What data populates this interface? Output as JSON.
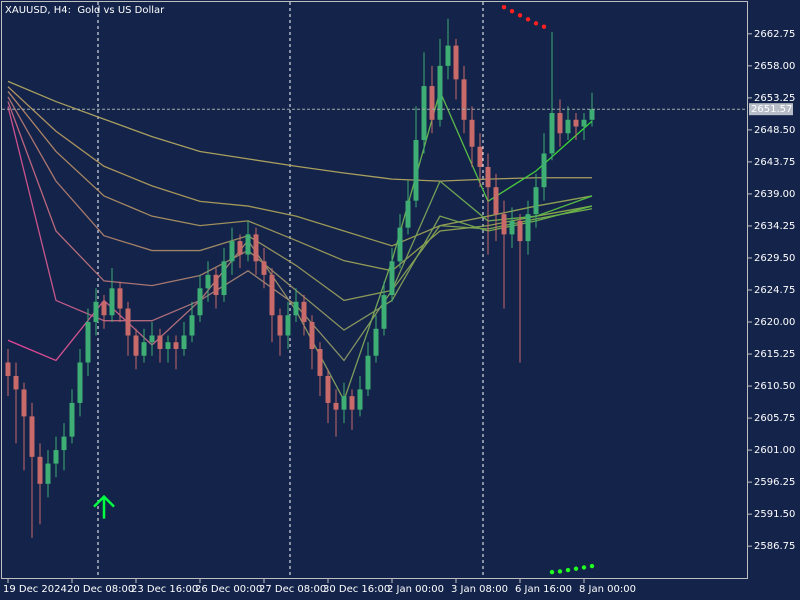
{
  "chart_data": {
    "type": "candlestick",
    "title": "XAUUSD, H4:  Gold vs US Dollar",
    "background": "#13234a",
    "up_color": "#3fae74",
    "down_color": "#c96a6a",
    "grid": false,
    "ylim": [
      2581.88,
      2667.47
    ],
    "yticks": [
      2662.75,
      {
        "value": 2658,
        "label": "2658.00"
      },
      2653.25,
      {
        "value": 2648.5,
        "label": "2648.50"
      },
      2643.75,
      {
        "value": 2639,
        "label": "2639.00"
      },
      2634.25,
      {
        "value": 2629.5,
        "label": "2629.50"
      },
      2624.75,
      {
        "value": 2620,
        "label": "2620.00"
      },
      2615.25,
      {
        "value": 2610.5,
        "label": "2610.50"
      },
      2605.75,
      {
        "value": 2601,
        "label": "2601.00"
      },
      2596.25,
      {
        "value": 2591.5,
        "label": "2591.50"
      },
      2586.75
    ],
    "current_price": 2651.57,
    "categories": [
      "19 Dec 2024",
      null,
      null,
      null,
      null,
      null,
      null,
      null,
      "20 Dec 08:00",
      null,
      null,
      null,
      null,
      null,
      null,
      null,
      "23 Dec 16:00",
      null,
      null,
      null,
      null,
      null,
      null,
      null,
      "26 Dec 00:00",
      null,
      null,
      null,
      null,
      null,
      null,
      null,
      "27 Dec 08:00",
      null,
      null,
      null,
      null,
      null,
      null,
      null,
      "30 Dec 16:00",
      null,
      null,
      null,
      null,
      null,
      null,
      null,
      "2 Jan 00:00",
      null,
      null,
      null,
      null,
      null,
      null,
      null,
      "3 Jan 08:00",
      null,
      null,
      null,
      null,
      null,
      null,
      null,
      "6 Jan 16:00",
      null,
      null,
      null,
      null,
      null,
      null,
      null,
      "8 Jan 00:00",
      null
    ],
    "ohlc": [
      [
        2614,
        2616,
        2609,
        2612
      ],
      [
        2612,
        2614,
        2602,
        2610
      ],
      [
        2610,
        2611,
        2598,
        2606
      ],
      [
        2606,
        2608,
        2588,
        2600
      ],
      [
        2600,
        2602,
        2590,
        2596
      ],
      [
        2596,
        2601,
        2594,
        2599
      ],
      [
        2599,
        2603,
        2597,
        2601
      ],
      [
        2601,
        2605,
        2598,
        2603
      ],
      [
        2603,
        2610,
        2602,
        2608
      ],
      [
        2608,
        2616,
        2606,
        2614
      ],
      [
        2614,
        2622,
        2612,
        2620
      ],
      [
        2620,
        2625,
        2618,
        2623
      ],
      [
        2623,
        2624,
        2619,
        2621
      ],
      [
        2621,
        2628,
        2620,
        2625
      ],
      [
        2625,
        2626,
        2620,
        2622
      ],
      [
        2622,
        2623,
        2615,
        2618
      ],
      [
        2618,
        2619,
        2613,
        2615
      ],
      [
        2615,
        2619,
        2614,
        2617
      ],
      [
        2617,
        2620,
        2615,
        2618
      ],
      [
        2618,
        2619,
        2614,
        2616
      ],
      [
        2616,
        2618,
        2614,
        2617
      ],
      [
        2617,
        2618,
        2613,
        2616
      ],
      [
        2616,
        2620,
        2615,
        2618
      ],
      [
        2618,
        2623,
        2617,
        2621
      ],
      [
        2621,
        2627,
        2620,
        2625
      ],
      [
        2625,
        2629,
        2623,
        2627
      ],
      [
        2627,
        2628,
        2622,
        2624
      ],
      [
        2624,
        2631,
        2623,
        2629
      ],
      [
        2629,
        2634,
        2627,
        2632
      ],
      [
        2632,
        2633,
        2628,
        2630
      ],
      [
        2630,
        2635,
        2629,
        2633
      ],
      [
        2633,
        2634,
        2627,
        2629
      ],
      [
        2629,
        2631,
        2625,
        2627
      ],
      [
        2627,
        2628,
        2617,
        2621
      ],
      [
        2621,
        2622,
        2615,
        2618
      ],
      [
        2618,
        2623,
        2616,
        2621
      ],
      [
        2621,
        2625,
        2620,
        2623
      ],
      [
        2623,
        2624,
        2618,
        2620
      ],
      [
        2620,
        2621,
        2613,
        2616
      ],
      [
        2616,
        2617,
        2609,
        2612
      ],
      [
        2612,
        2613,
        2605,
        2608
      ],
      [
        2608,
        2610,
        2603,
        2607
      ],
      [
        2607,
        2611,
        2605,
        2609
      ],
      [
        2609,
        2610,
        2604,
        2607
      ],
      [
        2607,
        2612,
        2606,
        2610
      ],
      [
        2610,
        2617,
        2609,
        2615
      ],
      [
        2615,
        2621,
        2614,
        2619
      ],
      [
        2619,
        2626,
        2618,
        2624
      ],
      [
        2624,
        2631,
        2623,
        2629
      ],
      [
        2629,
        2636,
        2628,
        2634
      ],
      [
        2634,
        2641,
        2633,
        2638
      ],
      [
        2638,
        2652,
        2637,
        2647
      ],
      [
        2647,
        2660,
        2645,
        2655
      ],
      [
        2655,
        2658,
        2648,
        2650
      ],
      [
        2650,
        2662,
        2649,
        2658
      ],
      [
        2658,
        2665,
        2656,
        2661
      ],
      [
        2661,
        2662,
        2653,
        2656
      ],
      [
        2656,
        2658,
        2648,
        2650
      ],
      [
        2650,
        2652,
        2643,
        2646
      ],
      [
        2646,
        2648,
        2640,
        2643
      ],
      [
        2643,
        2645,
        2630,
        2640
      ],
      [
        2640,
        2642,
        2632,
        2636
      ],
      [
        2636,
        2638,
        2622,
        2633
      ],
      [
        2633,
        2637,
        2631,
        2635
      ],
      [
        2635,
        2636,
        2614,
        2632
      ],
      [
        2632,
        2638,
        2630,
        2636
      ],
      [
        2636,
        2642,
        2634,
        2640
      ],
      [
        2640,
        2648,
        2638,
        2645
      ],
      [
        2645,
        2663,
        2644,
        2651
      ],
      [
        2651,
        2653,
        2646,
        2648
      ],
      [
        2648,
        2652,
        2647,
        2650
      ],
      [
        2650,
        2651,
        2647,
        2649
      ],
      [
        2649,
        2651,
        2647,
        2650
      ],
      [
        2650,
        2654,
        2649,
        2651.57
      ]
    ],
    "series": [
      {
        "color": "#a89e5e",
        "color_end": "#a89e5e",
        "x": [
          0,
          6,
          12,
          18,
          24,
          30,
          36,
          42,
          48,
          54,
          60,
          66,
          73
        ],
        "values": [
          2655.7,
          2652.7,
          2650.1,
          2647.5,
          2645.3,
          2644.2,
          2643.1,
          2642.1,
          2641.2,
          2640.9,
          2641.2,
          2641.4,
          2641.4
        ]
      },
      {
        "color": "#b09060",
        "color_end": "#8ca050",
        "x": [
          0,
          6,
          12,
          18,
          24,
          30,
          36,
          42,
          48,
          54,
          60,
          66,
          73
        ],
        "values": [
          2654.9,
          2648.3,
          2643.1,
          2640.2,
          2637.9,
          2637.2,
          2635.7,
          2633.5,
          2631.3,
          2634.3,
          2635.7,
          2637.2,
          2638.7
        ]
      },
      {
        "color": "#b08068",
        "color_end": "#80a848",
        "x": [
          0,
          6,
          12,
          18,
          24,
          30,
          36,
          42,
          48,
          54,
          60,
          66,
          73
        ],
        "values": [
          2654.2,
          2645.3,
          2638.7,
          2635.7,
          2634.3,
          2635,
          2632.1,
          2629.1,
          2627.6,
          2633.5,
          2634.3,
          2635.7,
          2637.2
        ]
      },
      {
        "color": "#b07070",
        "color_end": "#70b048",
        "x": [
          0,
          6,
          12,
          18,
          24,
          30,
          36,
          42,
          48,
          54,
          60,
          66,
          73
        ],
        "values": [
          2653.4,
          2640.9,
          2632.8,
          2630.6,
          2630.6,
          2632.8,
          2628.4,
          2623.2,
          2624.7,
          2634.3,
          2633.8,
          2635.3,
          2636.8
        ]
      },
      {
        "color": "#c06080",
        "color_end": "#60b844",
        "x": [
          0,
          6,
          12,
          18,
          24,
          30,
          36,
          42,
          48,
          54,
          60,
          66,
          73
        ],
        "values": [
          2652.7,
          2633.5,
          2626.1,
          2625.4,
          2626.9,
          2630.6,
          2624.7,
          2618.8,
          2623.2,
          2635.7,
          2633.5,
          2635,
          2637.2
        ]
      },
      {
        "color": "#d04e90",
        "color_end": "#50c040",
        "x": [
          0,
          6,
          12,
          18,
          24,
          30,
          36,
          42,
          48,
          54,
          60,
          66,
          73
        ],
        "values": [
          2651.98,
          2623.2,
          2620.2,
          2620.2,
          2623.2,
          2627.6,
          2622.5,
          2614.3,
          2624.7,
          2640.9,
          2635,
          2635.7,
          2638.7
        ]
      },
      {
        "color": "#e8409a",
        "color_end": "#30e030",
        "x": [
          0,
          6,
          12,
          18,
          24,
          30,
          36,
          42,
          48,
          54,
          60,
          66,
          73
        ],
        "values": [
          2617.3,
          2614.3,
          2623.2,
          2616.6,
          2623.2,
          2632.1,
          2621.7,
          2608.4,
          2629.1,
          2654.2,
          2637.9,
          2642.4,
          2649.8
        ]
      }
    ],
    "arrows_up": [
      {
        "color": "#00ff40",
        "x": 12,
        "y": 2594.1
      }
    ],
    "markers": [
      {
        "color": "#ff2020",
        "x": [
          62,
          63,
          64,
          65,
          66,
          67
        ],
        "y": [
          2666.7,
          2666.1,
          2665.5,
          2664.9,
          2664.3,
          2663.8
        ]
      },
      {
        "color": "#20ff20",
        "x": [
          68,
          69,
          70,
          71,
          72,
          73
        ],
        "y": [
          2582.9,
          2583.0,
          2583.2,
          2583.4,
          2583.6,
          2583.8
        ]
      }
    ]
  }
}
